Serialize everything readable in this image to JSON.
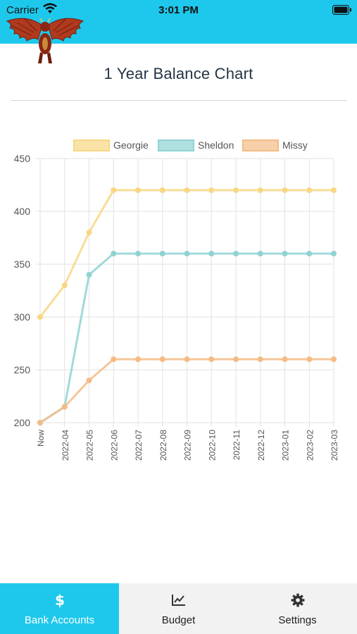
{
  "status_bar": {
    "carrier": "Carrier",
    "time": "3:01 PM"
  },
  "page": {
    "title": "1 Year Balance Chart"
  },
  "chart_data": {
    "type": "line",
    "title": "",
    "xlabel": "",
    "ylabel": "",
    "categories": [
      "Now",
      "2022-04",
      "2022-05",
      "2022-06",
      "2022-07",
      "2022-08",
      "2022-09",
      "2022-10",
      "2022-11",
      "2022-12",
      "2023-01",
      "2023-02",
      "2023-03"
    ],
    "y_ticks": [
      200,
      250,
      300,
      350,
      400,
      450
    ],
    "ylim": [
      200,
      450
    ],
    "grid": true,
    "legend_position": "top",
    "series": [
      {
        "name": "Georgie",
        "color": "#f7d783",
        "values": [
          300,
          330,
          380,
          420,
          420,
          420,
          420,
          420,
          420,
          420,
          420,
          420,
          420
        ]
      },
      {
        "name": "Sheldon",
        "color": "#8fd3d1",
        "values": [
          200,
          215,
          340,
          360,
          360,
          360,
          360,
          360,
          360,
          360,
          360,
          360,
          360
        ]
      },
      {
        "name": "Missy",
        "color": "#f3bc86",
        "values": [
          200,
          215,
          240,
          260,
          260,
          260,
          260,
          260,
          260,
          260,
          260,
          260,
          260
        ]
      }
    ]
  },
  "tabs": [
    {
      "label": "Bank Accounts",
      "icon": "dollar-icon",
      "active": true
    },
    {
      "label": "Budget",
      "icon": "chart-icon",
      "active": false
    },
    {
      "label": "Settings",
      "icon": "gear-icon",
      "active": false
    }
  ]
}
